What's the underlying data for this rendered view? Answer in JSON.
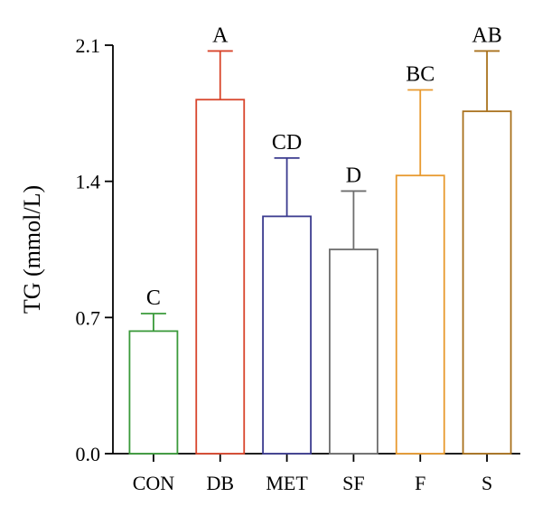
{
  "chart_data": {
    "type": "bar",
    "title": "",
    "xlabel": "",
    "ylabel": "TG (mmol/L)",
    "ylim": [
      0,
      2.1
    ],
    "yticks": [
      "0.0",
      "0.7",
      "1.4",
      "2.1"
    ],
    "grid": false,
    "legend": "none",
    "categories": [
      "CON",
      "DB",
      "MET",
      "SF",
      "F",
      "S"
    ],
    "values": [
      0.63,
      1.82,
      1.22,
      1.05,
      1.43,
      1.76
    ],
    "error_upper": [
      0.72,
      2.07,
      1.52,
      1.35,
      1.87,
      2.07
    ],
    "significance_labels": [
      "C",
      "A",
      "CD",
      "D",
      "BC",
      "AB"
    ],
    "colors": [
      "#3a9a3a",
      "#d8452b",
      "#3b3b8f",
      "#6e6e6e",
      "#e89a2f",
      "#a9711d"
    ]
  }
}
